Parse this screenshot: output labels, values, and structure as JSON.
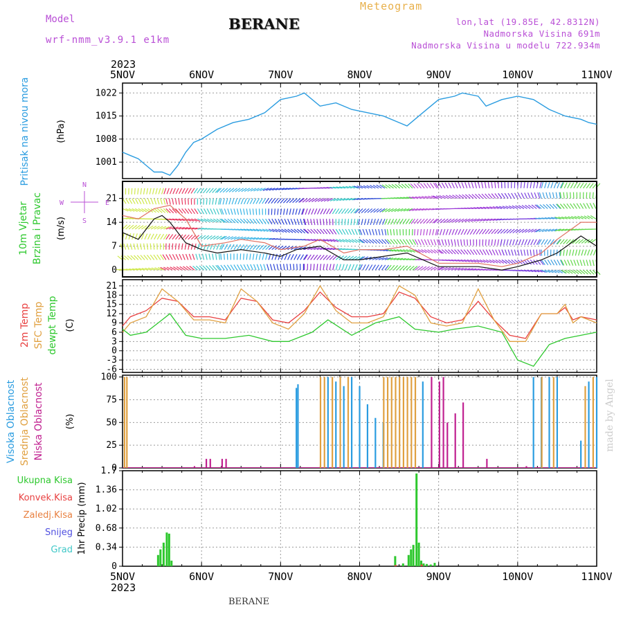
{
  "header": {
    "model_label": "Model",
    "model_name": "wrf-nmm_v3.9.1 e1km",
    "station": "BERANE",
    "meteogram_label": "Meteogram",
    "lonlat": "lon,lat (19.85E, 42.8312N)",
    "elevation": "Nadmorska Visina 691m",
    "model_elevation": "Nadmorska Visina u modelu 722.934m"
  },
  "footer": {
    "station": "BERANE",
    "watermark": "made by Angel"
  },
  "chart_data": [
    {
      "type": "line",
      "panel": "pressure",
      "ylabel_side": "Pritisak na nivou mora",
      "ylabel": "(hPa)",
      "yticks": [
        1001,
        1008,
        1015,
        1022
      ],
      "ylim": [
        996,
        1025
      ],
      "x": [
        5.0,
        5.1,
        5.2,
        5.3,
        5.4,
        5.5,
        5.6,
        5.7,
        5.8,
        5.9,
        6.0,
        6.2,
        6.4,
        6.6,
        6.8,
        7.0,
        7.2,
        7.3,
        7.5,
        7.7,
        7.9,
        8.1,
        8.3,
        8.5,
        8.6,
        8.8,
        9.0,
        9.2,
        9.3,
        9.5,
        9.6,
        9.8,
        10.0,
        10.2,
        10.4,
        10.6,
        10.8,
        10.9,
        11.0
      ],
      "y": [
        1004,
        1003,
        1002,
        1000,
        998,
        998,
        997,
        1000,
        1004,
        1007,
        1008,
        1011,
        1013,
        1014,
        1016,
        1020,
        1021,
        1022,
        1018,
        1019,
        1017,
        1016,
        1015,
        1013,
        1012,
        1016,
        1020,
        1021,
        1022,
        1021,
        1018,
        1020,
        1021,
        1020,
        1017,
        1015,
        1014,
        1013,
        1012.5
      ]
    },
    {
      "type": "line",
      "panel": "wind",
      "ylabel_side": "10m Vjetar Brzina i Pravac",
      "ylabel": "(m/s)",
      "compass": [
        "N",
        "E",
        "S",
        "W"
      ],
      "yticks": [
        0,
        7,
        14,
        21
      ],
      "ylim": [
        -2,
        26
      ],
      "series": [
        {
          "x": [
            5.0,
            5.2,
            5.4,
            5.5,
            5.6,
            5.8,
            6.0,
            6.2,
            6.5,
            6.8,
            7.0,
            7.2,
            7.5,
            7.8,
            8.0,
            8.3,
            8.6,
            9.0,
            9.5,
            9.8,
            10.0,
            10.3,
            10.5,
            10.8,
            11.0
          ],
          "values": [
            11,
            9,
            15,
            16,
            14,
            8,
            6,
            5,
            6,
            5,
            4,
            6,
            7,
            3,
            3,
            4,
            5,
            1,
            1,
            0,
            1,
            3,
            5,
            10,
            7
          ]
        },
        {
          "x": [
            5.0,
            5.2,
            5.4,
            5.6,
            5.8,
            6.0,
            6.3,
            6.5,
            6.8,
            7.0,
            7.3,
            7.5,
            7.8,
            8.0,
            8.3,
            8.6,
            9.0,
            9.5,
            9.8,
            10.0,
            10.3,
            10.5,
            10.8,
            11.0
          ],
          "values": [
            16,
            15,
            18,
            19,
            15,
            7,
            8,
            9,
            8,
            6,
            7,
            9,
            5,
            6,
            6,
            7,
            2,
            2,
            1,
            2,
            5,
            9,
            14,
            14
          ]
        }
      ],
      "arrow_bands": [
        {
          "from": 5.0,
          "to": 5.55,
          "color": "#cfe84a"
        },
        {
          "from": 5.55,
          "to": 5.95,
          "color": "#e8365e"
        },
        {
          "from": 5.95,
          "to": 6.25,
          "color": "#3fc8c8"
        },
        {
          "from": 6.25,
          "to": 6.85,
          "color": "#38b4e6"
        },
        {
          "from": 6.85,
          "to": 7.3,
          "color": "#2c44d8"
        },
        {
          "from": 7.3,
          "to": 7.7,
          "color": "#8d2fd0"
        },
        {
          "from": 7.7,
          "to": 8.0,
          "color": "#38c8c8"
        },
        {
          "from": 8.0,
          "to": 8.35,
          "color": "#3a58dc"
        },
        {
          "from": 8.35,
          "to": 8.7,
          "color": "#55d84a"
        },
        {
          "from": 8.7,
          "to": 9.0,
          "color": "#b64ad6"
        },
        {
          "from": 9.0,
          "to": 9.8,
          "color": "#9b3ad8"
        },
        {
          "from": 9.8,
          "to": 10.3,
          "color": "#7a42e0"
        },
        {
          "from": 10.3,
          "to": 10.55,
          "color": "#3c9ee0"
        },
        {
          "from": 10.55,
          "to": 11.0,
          "color": "#62d84a"
        }
      ]
    },
    {
      "type": "line",
      "panel": "temperature",
      "ylabel_side": [
        "2m Temp",
        "SFC Temp",
        "dewpt Temp"
      ],
      "ylabel": "(C)",
      "yticks": [
        -6,
        -3,
        0,
        3,
        6,
        9,
        12,
        15,
        18,
        21
      ],
      "ylim": [
        -7,
        23
      ],
      "series": [
        {
          "name": "2m Temp",
          "color": "#e84040",
          "x": [
            5.0,
            5.1,
            5.3,
            5.5,
            5.7,
            5.9,
            6.1,
            6.3,
            6.5,
            6.7,
            6.9,
            7.1,
            7.3,
            7.5,
            7.7,
            7.9,
            8.1,
            8.3,
            8.5,
            8.7,
            8.9,
            9.1,
            9.3,
            9.5,
            9.7,
            9.9,
            10.1,
            10.3,
            10.5,
            10.6,
            10.7,
            10.8,
            11.0
          ],
          "values": [
            8,
            11,
            13,
            17,
            16,
            11,
            11,
            10,
            17,
            16,
            10,
            9,
            13,
            19,
            14,
            11,
            11,
            12,
            19,
            17,
            11,
            9,
            10,
            16,
            10,
            5,
            4,
            12,
            12,
            14,
            10,
            11,
            10
          ]
        },
        {
          "name": "SFC Temp",
          "color": "#e0a040",
          "x": [
            5.0,
            5.1,
            5.3,
            5.5,
            5.7,
            5.9,
            6.1,
            6.3,
            6.5,
            6.7,
            6.9,
            7.1,
            7.3,
            7.5,
            7.7,
            7.9,
            8.1,
            8.3,
            8.5,
            8.7,
            8.9,
            9.1,
            9.3,
            9.5,
            9.7,
            9.9,
            10.1,
            10.3,
            10.5,
            10.6,
            10.7,
            10.8,
            11.0
          ],
          "values": [
            6,
            9,
            11,
            20,
            16,
            10,
            10,
            9,
            20,
            16,
            9,
            7,
            12,
            21,
            13,
            9,
            9,
            11,
            21,
            18,
            9,
            8,
            9,
            20,
            10,
            3,
            3,
            12,
            12,
            15,
            9,
            11,
            9
          ]
        },
        {
          "name": "dewpt Temp",
          "color": "#2ec82e",
          "x": [
            5.0,
            5.1,
            5.3,
            5.5,
            5.6,
            5.8,
            6.0,
            6.3,
            6.6,
            6.9,
            7.1,
            7.4,
            7.6,
            7.9,
            8.2,
            8.5,
            8.7,
            9.0,
            9.2,
            9.5,
            9.8,
            10.0,
            10.2,
            10.4,
            10.6,
            10.8,
            11.0
          ],
          "values": [
            7,
            5,
            6,
            10,
            12,
            5,
            4,
            4,
            5,
            3,
            3,
            6,
            10,
            5,
            9,
            11,
            7,
            6,
            7,
            8,
            6,
            -3,
            -5,
            2,
            4,
            5,
            6
          ]
        }
      ]
    },
    {
      "type": "bar",
      "panel": "cloud",
      "ylabel_side": [
        "Visoka Oblacnost",
        "Srednja Oblacnost",
        "Niska Oblacnost"
      ],
      "ylabel": "(%)",
      "yticks": [
        0,
        25,
        50,
        75,
        100
      ],
      "ylim": [
        0,
        102
      ],
      "series": [
        {
          "name": "Visoka Oblacnost",
          "color": "#2a9ce0",
          "x": [
            7.2,
            7.22,
            7.6,
            7.7,
            7.8,
            7.9,
            8.0,
            8.1,
            8.2,
            8.3,
            8.8,
            10.2,
            10.3,
            10.4,
            10.5,
            10.8,
            10.9,
            11.0
          ],
          "values": [
            88,
            92,
            100,
            95,
            90,
            100,
            90,
            70,
            55,
            50,
            95,
            100,
            100,
            100,
            100,
            30,
            95,
            100
          ]
        },
        {
          "name": "Srednja Oblacnost",
          "color": "#e0a040",
          "x": [
            5.02,
            5.05,
            7.5,
            7.55,
            7.65,
            7.75,
            7.85,
            8.3,
            8.35,
            8.4,
            8.45,
            8.5,
            8.55,
            8.6,
            8.65,
            8.7,
            10.3,
            10.45,
            10.85,
            10.95
          ],
          "values": [
            100,
            100,
            100,
            100,
            100,
            100,
            100,
            100,
            100,
            100,
            100,
            100,
            100,
            100,
            100,
            100,
            100,
            100,
            90,
            100
          ]
        },
        {
          "name": "Niska Oblacnost",
          "color": "#c02090",
          "x": [
            5.9,
            6.05,
            6.1,
            6.25,
            6.3,
            8.9,
            9.0,
            9.05,
            9.1,
            9.2,
            9.3,
            9.6,
            10.1
          ],
          "values": [
            2,
            10,
            10,
            10,
            10,
            100,
            95,
            100,
            50,
            60,
            72,
            10,
            2
          ]
        }
      ]
    },
    {
      "type": "bar",
      "panel": "precip",
      "ylabel_side": [
        "Ukupna Kisa",
        "Konvek.Kisa",
        "Zaledj.Kisa",
        "Snijeg",
        "Grad"
      ],
      "legend_colors": [
        "#2ec82e",
        "#e84040",
        "#e88040",
        "#5050e0",
        "#40c8c8"
      ],
      "ylabel": "1hr Precip (mm)",
      "yticks": [
        0,
        0.34,
        0.68,
        1.02,
        1.36,
        1.7
      ],
      "ylim": [
        0,
        1.7
      ],
      "series": [
        {
          "name": "Ukupna Kisa",
          "color": "#2ec82e",
          "x": [
            5.45,
            5.48,
            5.52,
            5.56,
            5.59,
            5.62,
            5.66,
            8.45,
            8.55,
            8.62,
            8.65,
            8.68,
            8.72,
            8.75,
            8.78,
            8.81,
            8.85,
            8.9,
            8.95
          ],
          "values": [
            0.2,
            0.3,
            0.42,
            0.6,
            0.58,
            0.1,
            0.0,
            0.18,
            0.05,
            0.2,
            0.3,
            0.38,
            1.65,
            0.42,
            0.1,
            0.05,
            0.04,
            0.03,
            0.06
          ]
        },
        {
          "name": "Konvek.Kisa",
          "color": "#e84040",
          "x": [
            8.45,
            8.78
          ],
          "values": [
            0.02,
            0.03
          ]
        }
      ]
    }
  ],
  "axes": {
    "year": "2023",
    "top_labels": [
      "5NOV",
      "6NOV",
      "7NOV",
      "8NOV",
      "9NOV",
      "10NOV",
      "11NOV"
    ],
    "bottom_labels": [
      "5NOV",
      "6NOV",
      "7NOV",
      "8NOV",
      "9NOV",
      "10NOV",
      "11NOV"
    ]
  }
}
